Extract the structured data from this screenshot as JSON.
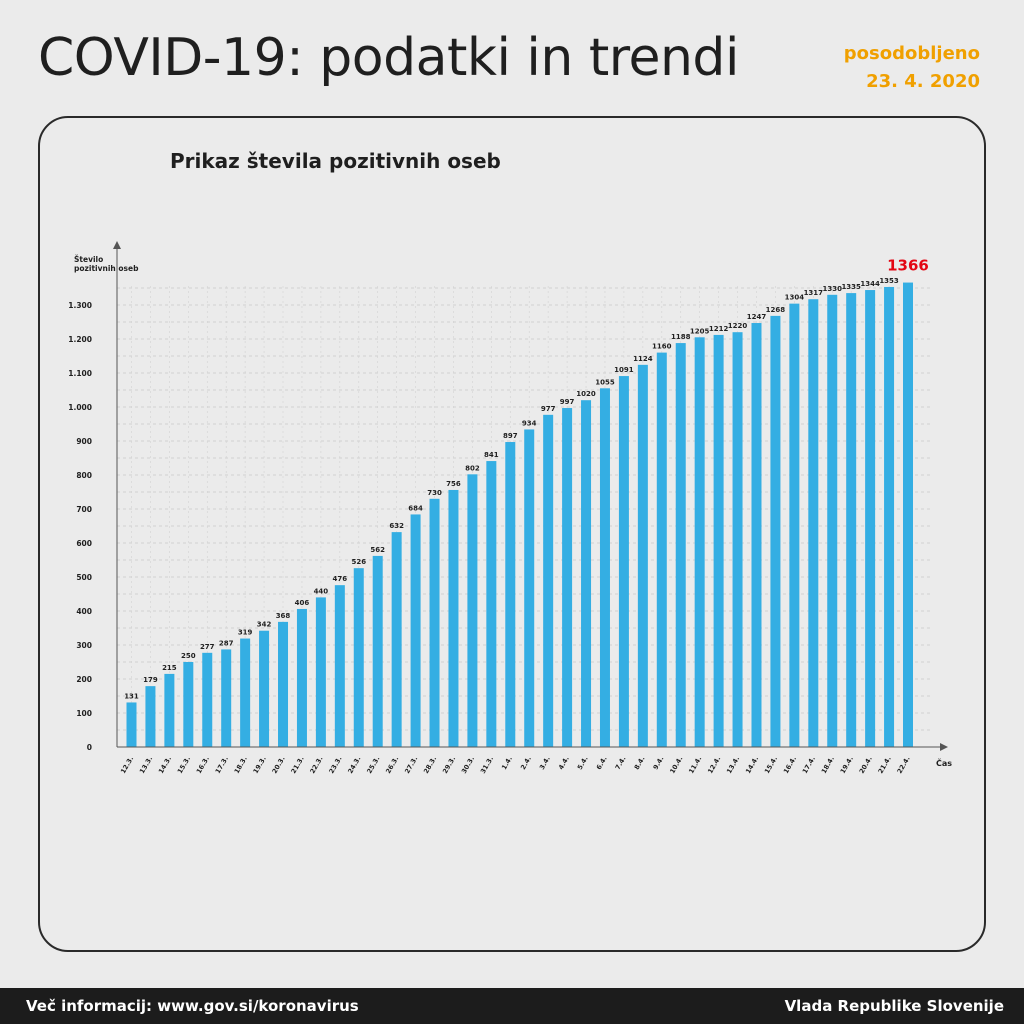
{
  "header": {
    "title": "COVID-19: podatki in trendi",
    "updated_label": "posodobljeno",
    "updated_date": "23. 4. 2020",
    "accent_color": "#f0a000"
  },
  "footer": {
    "info": "Več informacij: www.gov.si/koronavirus",
    "publisher": "Vlada Republike Slovenije"
  },
  "chart_data": {
    "type": "bar",
    "title": "Prikaz števila pozitivnih oseb",
    "ylabel_line1": "Število",
    "ylabel_line2": "pozitivnih oseb",
    "xlabel": "Čas",
    "ylim": [
      0,
      1400
    ],
    "yticks": [
      0,
      100,
      200,
      300,
      400,
      500,
      600,
      700,
      800,
      900,
      1000,
      1100,
      1200,
      1300
    ],
    "ytick_labels": [
      "0",
      "100",
      "200",
      "300",
      "400",
      "500",
      "600",
      "700",
      "800",
      "900",
      "1.000",
      "1.100",
      "1.200",
      "1.300"
    ],
    "grid": true,
    "bar_color": "#34aee3",
    "highlight_color": "#e30613",
    "categories": [
      "12.3.",
      "13.3.",
      "14.3.",
      "15.3.",
      "16.3.",
      "17.3.",
      "18.3.",
      "19.3.",
      "20.3.",
      "21.3.",
      "22.3.",
      "23.3.",
      "24.3.",
      "25.3.",
      "26.3.",
      "27.3.",
      "28.3.",
      "29.3.",
      "30.3.",
      "31.3.",
      "1.4.",
      "2.4.",
      "3.4.",
      "4.4.",
      "5.4.",
      "6.4.",
      "7.4.",
      "8.4.",
      "9.4.",
      "10.4.",
      "11.4.",
      "12.4.",
      "13.4.",
      "14.4.",
      "15.4.",
      "16.4.",
      "17.4.",
      "18.4.",
      "19.4.",
      "20.4.",
      "21.4.",
      "22.4."
    ],
    "values": [
      131,
      179,
      215,
      250,
      277,
      287,
      319,
      342,
      368,
      406,
      440,
      476,
      526,
      562,
      632,
      684,
      730,
      756,
      802,
      841,
      897,
      934,
      977,
      997,
      1020,
      1055,
      1091,
      1124,
      1160,
      1188,
      1205,
      1212,
      1220,
      1247,
      1268,
      1304,
      1317,
      1330,
      1335,
      1344,
      1353,
      1366
    ]
  }
}
